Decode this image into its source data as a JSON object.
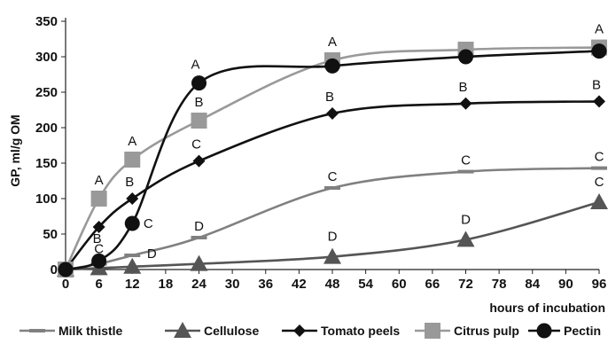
{
  "chart_data": {
    "type": "line",
    "title": "",
    "xlabel": "hours of incubation",
    "ylabel": "GP, ml/g OM",
    "xlim": [
      0,
      96
    ],
    "ylim": [
      0,
      350
    ],
    "x_ticks": [
      0,
      6,
      12,
      18,
      24,
      30,
      36,
      42,
      48,
      54,
      60,
      66,
      72,
      78,
      84,
      90,
      96
    ],
    "y_ticks": [
      0,
      50,
      100,
      150,
      200,
      250,
      300,
      350
    ],
    "grid": false,
    "legend_position": "bottom",
    "series": [
      {
        "name": "Milk thistle",
        "marker": "dash",
        "color": "#808080",
        "x": [
          0,
          6,
          12,
          24,
          48,
          72,
          96
        ],
        "values": [
          0,
          8,
          20,
          45,
          115,
          138,
          143
        ],
        "letters": [
          "",
          "C",
          "D",
          "D",
          "C",
          "C",
          "C"
        ]
      },
      {
        "name": "Cellulose",
        "marker": "triangle",
        "color": "#555555",
        "x": [
          0,
          6,
          12,
          24,
          48,
          72,
          96
        ],
        "values": [
          0,
          2,
          4,
          8,
          18,
          42,
          95
        ],
        "letters": [
          "",
          "",
          "",
          "",
          "D",
          "D",
          "C"
        ]
      },
      {
        "name": "Tomato peels",
        "marker": "diamond",
        "color": "#111111",
        "x": [
          0,
          6,
          12,
          24,
          48,
          72,
          96
        ],
        "values": [
          0,
          60,
          100,
          153,
          220,
          234,
          237
        ],
        "letters": [
          "",
          "B",
          "B",
          "C",
          "B",
          "B",
          "B"
        ]
      },
      {
        "name": "Citrus pulp",
        "marker": "square",
        "color": "#999999",
        "x": [
          0,
          6,
          12,
          24,
          48,
          72,
          96
        ],
        "values": [
          0,
          100,
          155,
          210,
          295,
          310,
          313
        ],
        "letters": [
          "",
          "A",
          "A",
          "B",
          "A",
          "",
          "A"
        ]
      },
      {
        "name": "Pectin",
        "marker": "circle",
        "color": "#111111",
        "x": [
          0,
          6,
          12,
          24,
          48,
          72,
          96
        ],
        "values": [
          0,
          12,
          65,
          263,
          287,
          300,
          308
        ],
        "letters": [
          "",
          "",
          "C",
          "A",
          "",
          "",
          ""
        ]
      }
    ]
  }
}
